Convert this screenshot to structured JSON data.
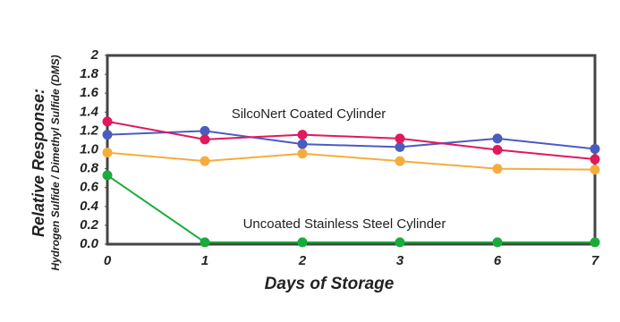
{
  "chart_data": {
    "type": "line",
    "y_label": [
      "Relative Response:",
      "Hydrogen Sulfide / Dimethyl Sulfide (DMS)"
    ],
    "x_label": "Days of Storage",
    "annotations": [
      "SilcoNert Coated Cylinder",
      "Uncoated Stainless Steel Cylinder"
    ],
    "categories": [
      "0",
      "1",
      "2",
      "3",
      "6",
      "7"
    ],
    "series": [
      {
        "color": "#4a5cc0",
        "values": [
          1.16,
          1.2,
          1.06,
          1.03,
          1.12,
          1.01
        ]
      },
      {
        "color": "#e0195a",
        "values": [
          1.3,
          1.11,
          1.16,
          1.12,
          1.0,
          0.9
        ]
      },
      {
        "color": "#f5ac3c",
        "values": [
          0.97,
          0.88,
          0.96,
          0.88,
          0.8,
          0.79
        ]
      },
      {
        "color": "#1aab3c",
        "values": [
          0.73,
          0.02,
          0.02,
          0.02,
          0.02,
          0.02
        ]
      }
    ],
    "ylim": [
      0,
      2
    ],
    "yticks": [
      {
        "value": 0,
        "label": "0.0"
      },
      0.2,
      0.4,
      0.6,
      0.8,
      {
        "value": 1,
        "label": "1.0"
      },
      1.2,
      1.4,
      1.6,
      1.8,
      2
    ],
    "grid": false
  }
}
